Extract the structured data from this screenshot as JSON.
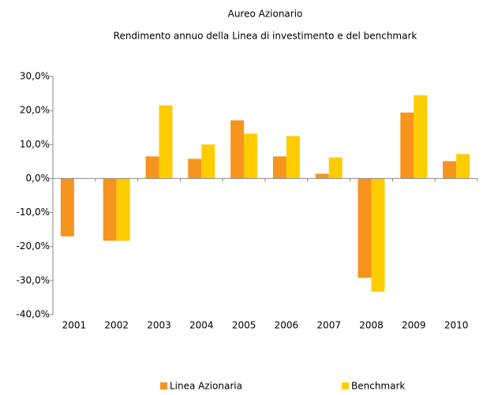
{
  "chart_data": {
    "type": "bar",
    "title": "Aureo Azionario",
    "subtitle": "Rendimento annuo della Linea di investimento e del benchmark",
    "categories": [
      "2001",
      "2002",
      "2003",
      "2004",
      "2005",
      "2006",
      "2007",
      "2008",
      "2009",
      "2010"
    ],
    "series": [
      {
        "name": "Linea Azionaria",
        "color": "#f7941e",
        "values": [
          -17,
          -18.3,
          6.5,
          5.8,
          17.1,
          6.5,
          1.4,
          -29.2,
          19.4,
          5.1
        ]
      },
      {
        "name": "Benchmark",
        "color": "#ffcc00",
        "values": [
          null,
          -18.3,
          21.5,
          10.0,
          13.2,
          12.5,
          6.2,
          -33.3,
          24.5,
          7.2
        ]
      }
    ],
    "ylim": [
      -40,
      30
    ],
    "yticks": [
      {
        "value": 30,
        "label": "30,0%"
      },
      {
        "value": 20,
        "label": "20,0%"
      },
      {
        "value": 10,
        "label": "10,0%"
      },
      {
        "value": 0,
        "label": "0,0%"
      },
      {
        "value": -10,
        "label": "-10,0%"
      },
      {
        "value": -20,
        "label": "-20,0%"
      },
      {
        "value": -30,
        "label": "-30,0%"
      },
      {
        "value": -40,
        "label": "-40,0%"
      }
    ],
    "grid": false,
    "legend": "bottom"
  }
}
